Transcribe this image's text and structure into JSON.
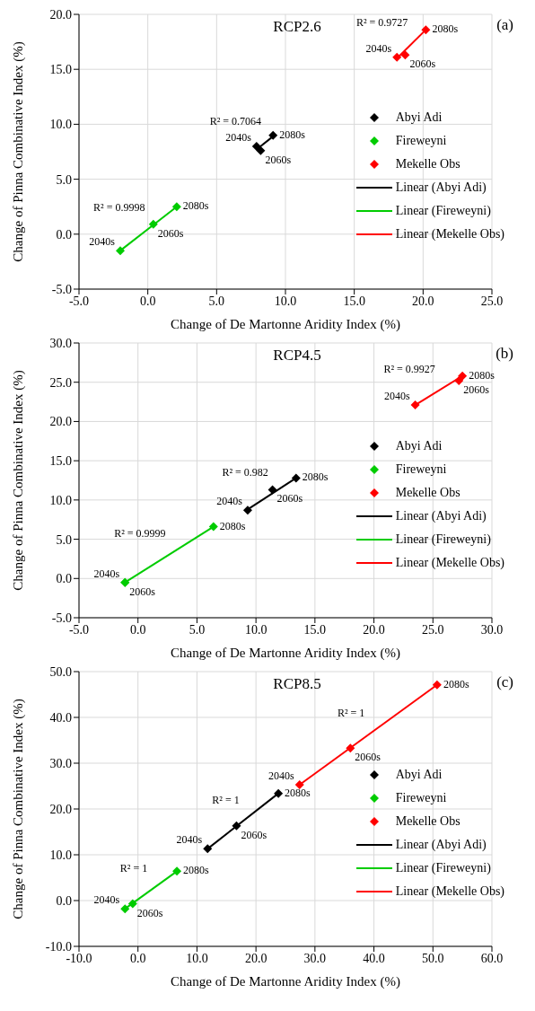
{
  "chart_data": [
    {
      "type": "scatter",
      "title": "RCP2.6",
      "xlabel": "Change of De Martonne Aridity Index (%)",
      "ylabel": "Change of Pinna Combinative Index (%)",
      "xlim": [
        -5,
        25
      ],
      "xticks": [
        {
          "value": -5,
          "label": "-5.0"
        },
        {
          "value": 0,
          "label": "0.0"
        },
        {
          "value": 5,
          "label": "5.0"
        },
        {
          "value": 10,
          "label": "10.0"
        },
        {
          "value": 15,
          "label": "15.0"
        },
        {
          "value": 20,
          "label": "20.0"
        },
        {
          "value": 25,
          "label": "25.0"
        }
      ],
      "ylim": [
        -5,
        20
      ],
      "yticks": [
        {
          "value": -5,
          "label": "-5.0"
        },
        {
          "value": 0,
          "label": "0.0"
        },
        {
          "value": 5,
          "label": "5.0"
        },
        {
          "value": 10,
          "label": "10.0"
        },
        {
          "value": 15,
          "label": "15.0"
        },
        {
          "value": 20,
          "label": "20.0"
        }
      ],
      "grid": true,
      "legend": "right",
      "series": [
        {
          "name": "Abyi Adi",
          "type": "scatter",
          "marker": "diamond",
          "color": "#000000",
          "x": [
            7.9,
            8.2,
            9.1
          ],
          "values": [
            8.0,
            7.6,
            9.0
          ]
        },
        {
          "name": "Fireweyni",
          "type": "scatter",
          "marker": "diamond",
          "color": "#00cc00",
          "x": [
            -2.0,
            0.4,
            2.1
          ],
          "values": [
            -1.5,
            0.9,
            2.5
          ]
        },
        {
          "name": "Mekelle Obs",
          "type": "scatter",
          "marker": "diamond",
          "color": "#ff0000",
          "x": [
            18.1,
            18.7,
            20.2
          ],
          "values": [
            16.1,
            16.3,
            18.6
          ]
        },
        {
          "name": "Linear (Abyi Adi)",
          "type": "line",
          "marker": "none",
          "color": "#000000",
          "x": [
            7.9,
            9.1
          ],
          "values": [
            7.7,
            8.9
          ]
        },
        {
          "name": "Linear (Fireweyni)",
          "type": "line",
          "marker": "none",
          "color": "#00cc00",
          "x": [
            -2.0,
            2.1
          ],
          "values": [
            -1.5,
            2.5
          ]
        },
        {
          "name": "Linear (Mekelle Obs)",
          "type": "line",
          "marker": "none",
          "color": "#ff0000",
          "x": [
            18.1,
            20.2
          ],
          "values": [
            16.0,
            18.6
          ]
        }
      ],
      "annotations": [
        "(a)",
        {
          "text": "2040s",
          "x": -2.0,
          "y": -1.5
        },
        {
          "text": "2060s",
          "x": 0.4,
          "y": 0.9
        },
        {
          "text": "2080s",
          "x": 2.1,
          "y": 2.5
        },
        {
          "text": "R² = 0.9998",
          "x": 0.05,
          "y": 0.5
        },
        {
          "text": "2040s",
          "x": 7.9,
          "y": 8.0
        },
        {
          "text": "2060s",
          "x": 8.2,
          "y": 7.6
        },
        {
          "text": "2080s",
          "x": 9.1,
          "y": 9.0
        },
        {
          "text": "R² = 0.7064",
          "x": 8.5,
          "y": 8.3
        },
        {
          "text": "2040s",
          "x": 18.1,
          "y": 16.1
        },
        {
          "text": "2060s",
          "x": 18.7,
          "y": 16.3
        },
        {
          "text": "2080s",
          "x": 20.2,
          "y": 18.6
        },
        {
          "text": "R² = 0.9727",
          "x": 19.15,
          "y": 17.3
        }
      ]
    },
    {
      "type": "scatter",
      "title": "RCP4.5",
      "xlabel": "Change of De Martonne Aridity Index (%)",
      "ylabel": "Change of Pinna Combinative Index (%)",
      "xlim": [
        -5,
        30
      ],
      "xticks": [
        {
          "value": -5,
          "label": "-5.0"
        },
        {
          "value": 0,
          "label": "0.0"
        },
        {
          "value": 5,
          "label": "5.0"
        },
        {
          "value": 10,
          "label": "10.0"
        },
        {
          "value": 15,
          "label": "15.0"
        },
        {
          "value": 20,
          "label": "20.0"
        },
        {
          "value": 25,
          "label": "25.0"
        },
        {
          "value": 30,
          "label": "30.0"
        }
      ],
      "ylim": [
        -5,
        30
      ],
      "yticks": [
        {
          "value": -5,
          "label": "-5.0"
        },
        {
          "value": 0,
          "label": "0.0"
        },
        {
          "value": 5,
          "label": "5.0"
        },
        {
          "value": 10,
          "label": "10.0"
        },
        {
          "value": 15,
          "label": "15.0"
        },
        {
          "value": 20,
          "label": "20.0"
        },
        {
          "value": 25,
          "label": "25.0"
        },
        {
          "value": 30,
          "label": "30.0"
        }
      ],
      "grid": true,
      "legend": "right",
      "series": [
        {
          "name": "Abyi Adi",
          "type": "scatter",
          "marker": "diamond",
          "color": "#000000",
          "x": [
            9.3,
            11.4,
            13.4
          ],
          "values": [
            8.7,
            11.3,
            12.8
          ]
        },
        {
          "name": "Fireweyni",
          "type": "scatter",
          "marker": "diamond",
          "color": "#00cc00",
          "x": [
            -1.1,
            -1.1,
            6.4
          ],
          "values": [
            -0.5,
            -0.5,
            6.6
          ]
        },
        {
          "name": "Mekelle Obs",
          "type": "scatter",
          "marker": "diamond",
          "color": "#ff0000",
          "x": [
            23.5,
            27.2,
            27.5
          ],
          "values": [
            22.1,
            25.2,
            25.8
          ]
        },
        {
          "name": "Linear (Abyi Adi)",
          "type": "line",
          "marker": "none",
          "color": "#000000",
          "x": [
            9.3,
            13.4
          ],
          "values": [
            8.8,
            12.8
          ]
        },
        {
          "name": "Linear (Fireweyni)",
          "type": "line",
          "marker": "none",
          "color": "#00cc00",
          "x": [
            -1.1,
            6.4
          ],
          "values": [
            -0.5,
            6.6
          ]
        },
        {
          "name": "Linear (Mekelle Obs)",
          "type": "line",
          "marker": "none",
          "color": "#ff0000",
          "x": [
            23.5,
            27.5
          ],
          "values": [
            22.1,
            25.8
          ]
        }
      ],
      "annotations": [
        "(b)",
        {
          "text": "2040s",
          "x": -1.1,
          "y": -0.5
        },
        {
          "text": "2060s",
          "x": -1.1,
          "y": -0.5
        },
        {
          "text": "2080s",
          "x": 6.4,
          "y": 6.6
        },
        {
          "text": "R² = 0.9999",
          "x": 2.65,
          "y": 3.05
        },
        {
          "text": "2040s",
          "x": 9.3,
          "y": 8.7
        },
        {
          "text": "2060s",
          "x": 11.4,
          "y": 11.3
        },
        {
          "text": "2080s",
          "x": 13.4,
          "y": 12.8
        },
        {
          "text": "R² = 0.982",
          "x": 11.35,
          "y": 10.8
        },
        {
          "text": "2040s",
          "x": 23.5,
          "y": 22.1
        },
        {
          "text": "2060s",
          "x": 27.2,
          "y": 25.2
        },
        {
          "text": "2080s",
          "x": 27.5,
          "y": 25.8
        },
        {
          "text": "R² = 0.9927",
          "x": 25.5,
          "y": 23.95
        }
      ]
    },
    {
      "type": "scatter",
      "title": "RCP8.5",
      "xlabel": "Change of De Martonne Aridity Index (%)",
      "ylabel": "Change of Pinna Combinative Index (%)",
      "xlim": [
        -10,
        60
      ],
      "xticks": [
        {
          "value": -10,
          "label": "-10.0"
        },
        {
          "value": 0,
          "label": "0.0"
        },
        {
          "value": 10,
          "label": "10.0"
        },
        {
          "value": 20,
          "label": "20.0"
        },
        {
          "value": 30,
          "label": "30.0"
        },
        {
          "value": 40,
          "label": "40.0"
        },
        {
          "value": 50,
          "label": "50.0"
        },
        {
          "value": 60,
          "label": "60.0"
        }
      ],
      "ylim": [
        -10,
        50
      ],
      "yticks": [
        {
          "value": -10,
          "label": "-10.0"
        },
        {
          "value": 0,
          "label": "0.0"
        },
        {
          "value": 10,
          "label": "10.0"
        },
        {
          "value": 20,
          "label": "20.0"
        },
        {
          "value": 30,
          "label": "30.0"
        },
        {
          "value": 40,
          "label": "40.0"
        },
        {
          "value": 50,
          "label": "50.0"
        }
      ],
      "grid": true,
      "legend": "right",
      "series": [
        {
          "name": "Abyi Adi",
          "type": "scatter",
          "marker": "diamond",
          "color": "#000000",
          "x": [
            11.8,
            16.7,
            23.8
          ],
          "values": [
            11.3,
            16.3,
            23.4
          ]
        },
        {
          "name": "Fireweyni",
          "type": "scatter",
          "marker": "diamond",
          "color": "#00cc00",
          "x": [
            -2.2,
            -0.9,
            6.6
          ],
          "values": [
            -1.8,
            -0.7,
            6.4
          ]
        },
        {
          "name": "Mekelle Obs",
          "type": "scatter",
          "marker": "diamond",
          "color": "#ff0000",
          "x": [
            27.4,
            36.0,
            50.7
          ],
          "values": [
            25.3,
            33.3,
            47.1
          ]
        },
        {
          "name": "Linear (Abyi Adi)",
          "type": "line",
          "marker": "none",
          "color": "#000000",
          "x": [
            11.8,
            23.8
          ],
          "values": [
            11.3,
            23.4
          ]
        },
        {
          "name": "Linear (Fireweyni)",
          "type": "line",
          "marker": "none",
          "color": "#00cc00",
          "x": [
            -2.2,
            6.6
          ],
          "values": [
            -1.8,
            6.4
          ]
        },
        {
          "name": "Linear (Mekelle Obs)",
          "type": "line",
          "marker": "none",
          "color": "#ff0000",
          "x": [
            27.4,
            50.7
          ],
          "values": [
            25.3,
            47.1
          ]
        }
      ],
      "annotations": [
        "(c)",
        {
          "text": "2040s",
          "x": -2.2,
          "y": -1.8
        },
        {
          "text": "2060s",
          "x": -0.9,
          "y": -0.7
        },
        {
          "text": "2080s",
          "x": 6.6,
          "y": 6.4
        },
        {
          "text": "R² = 1",
          "x": 2.2,
          "y": 2.3
        },
        {
          "text": "2040s",
          "x": 11.8,
          "y": 11.3
        },
        {
          "text": "2060s",
          "x": 16.7,
          "y": 16.3
        },
        {
          "text": "2080s",
          "x": 23.8,
          "y": 23.4
        },
        {
          "text": "R² = 1",
          "x": 17.8,
          "y": 17.35
        },
        {
          "text": "2040s",
          "x": 27.4,
          "y": 25.3
        },
        {
          "text": "2060s",
          "x": 36.0,
          "y": 33.3
        },
        {
          "text": "2080s",
          "x": 50.7,
          "y": 47.1
        },
        {
          "text": "R² = 1",
          "x": 39.05,
          "y": 36.2
        }
      ]
    }
  ]
}
